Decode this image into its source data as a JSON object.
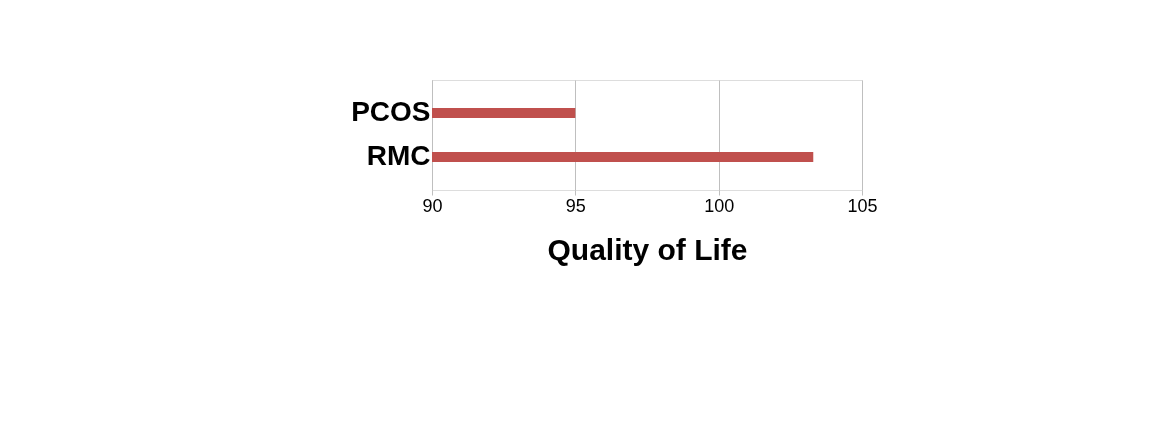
{
  "chart_data": {
    "type": "bar",
    "orientation": "horizontal",
    "xlabel": "Quality of Life",
    "categories": [
      "PCOS",
      "RMC"
    ],
    "values": [
      95,
      103.3
    ],
    "color": "#c0504d",
    "xlim": [
      90,
      105
    ],
    "xticks": [
      90,
      95,
      100,
      105
    ],
    "grid": "x"
  }
}
